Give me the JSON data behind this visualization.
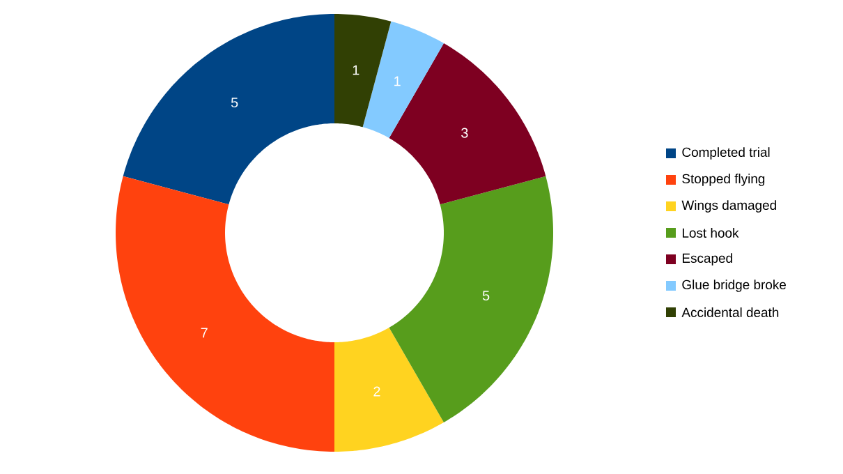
{
  "chart_data": {
    "type": "donut",
    "categories": [
      "Completed trial",
      "Stopped flying",
      "Wings damaged",
      "Lost hook",
      "Escaped",
      "Glue bridge broke",
      "Accidental death"
    ],
    "values": [
      5,
      7,
      2,
      5,
      3,
      1,
      1
    ],
    "colors": [
      "#004586",
      "#ff420e",
      "#ffd320",
      "#579d1c",
      "#7e0021",
      "#83caff",
      "#314004"
    ],
    "data_labels": true,
    "legend": "right"
  }
}
